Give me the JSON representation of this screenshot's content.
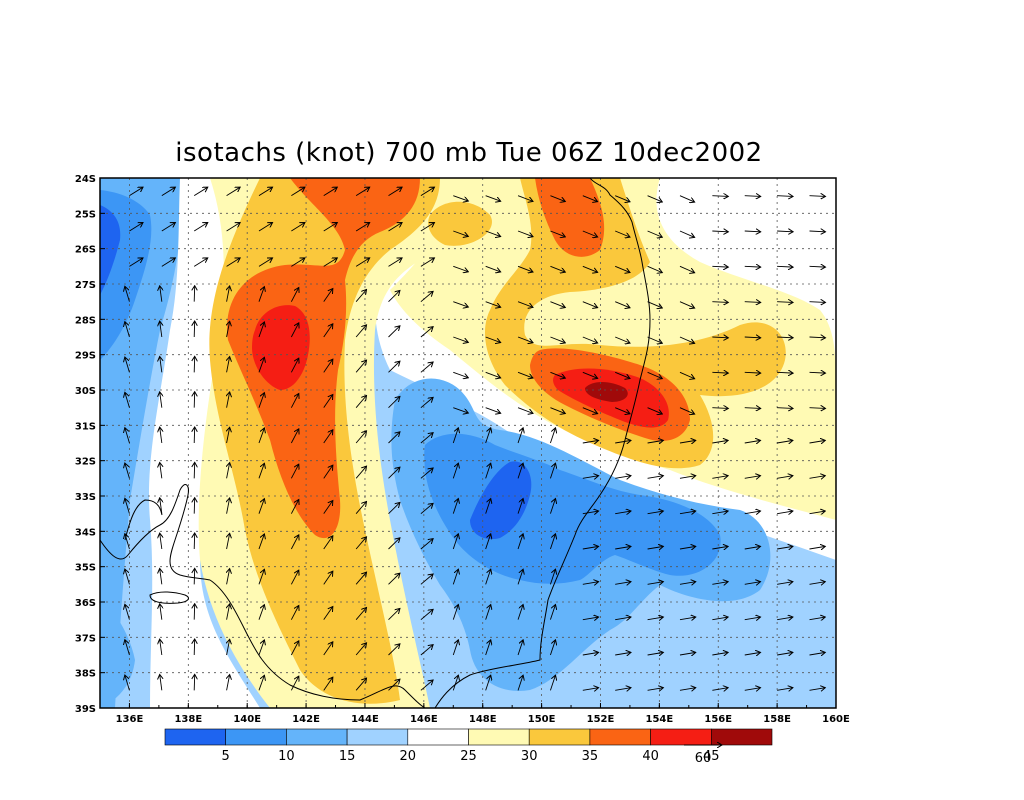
{
  "title": "isotachs (knot) 700 mb Tue 06Z 10dec2002",
  "map": {
    "lon_min": 135,
    "lon_max": 160,
    "lat_min": -39,
    "lat_max": -24,
    "x_ticks": [
      "136E",
      "138E",
      "140E",
      "142E",
      "144E",
      "146E",
      "148E",
      "150E",
      "152E",
      "154E",
      "156E",
      "158E",
      "160E"
    ],
    "y_ticks": [
      "24S",
      "25S",
      "26S",
      "27S",
      "28S",
      "29S",
      "30S",
      "31S",
      "32S",
      "33S",
      "34S",
      "35S",
      "36S",
      "37S",
      "38S",
      "39S"
    ],
    "grid": true,
    "vector_reference": "60"
  },
  "colorbar": {
    "labels": [
      "5",
      "10",
      "15",
      "20",
      "25",
      "30",
      "35",
      "40",
      "45"
    ],
    "colors": [
      "#1e64f0",
      "#3c96f5",
      "#64b4fa",
      "#a0d2ff",
      "#ffffff",
      "#fffab4",
      "#fac83c",
      "#fa6414",
      "#f51e14",
      "#a00a0a"
    ]
  },
  "chart_data": {
    "type": "heatmap",
    "title": "isotachs (knot) 700 mb Tue 06Z 10dec2002",
    "levels": [
      5,
      10,
      15,
      20,
      25,
      30,
      35,
      40,
      45
    ],
    "features": [
      {
        "lon": 141.5,
        "lat": -28.8,
        "value": 42
      },
      {
        "lon": 152.0,
        "lat": -30.1,
        "value": 46
      },
      {
        "lon": 151.0,
        "lat": -25.3,
        "value": 37
      },
      {
        "lon": 145.0,
        "lat": -24.6,
        "value": 37
      },
      {
        "lon": 149.0,
        "lat": -33.3,
        "value": 6
      },
      {
        "lon": 135.8,
        "lat": -26.0,
        "value": 8
      },
      {
        "lon": 155.0,
        "lat": -34.2,
        "value": 12
      }
    ]
  }
}
